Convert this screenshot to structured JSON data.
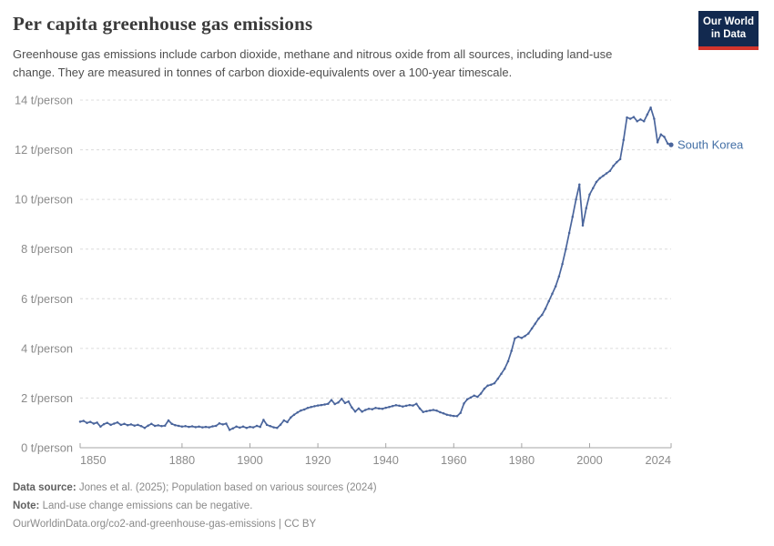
{
  "header": {
    "title": "Per capita greenhouse gas emissions",
    "subtitle": "Greenhouse gas emissions include carbon dioxide, methane and nitrous oxide from all sources, including land-use change. They are measured in tonnes of carbon dioxide-equivalents over a 100-year timescale.",
    "logo": {
      "line1": "Our World",
      "line2": "in Data"
    }
  },
  "chart_data": {
    "type": "line",
    "title": "Per capita greenhouse gas emissions",
    "entity": "South Korea",
    "unit": "t/person",
    "x": {
      "start": 1850,
      "end": 2024,
      "step": 1
    },
    "x_ticks": [
      1850,
      1880,
      1900,
      1920,
      1940,
      1960,
      1980,
      2000,
      2024
    ],
    "y_ticks": [
      0,
      2,
      4,
      6,
      8,
      10,
      12,
      14
    ],
    "y_tick_suffix": " t/person",
    "ylim": [
      0,
      14
    ],
    "grid": "dashed-horizontal",
    "legend_position": "end-of-line-label",
    "series": [
      {
        "name": "South Korea",
        "color": "#4a659c",
        "label_color": "#4470a6",
        "values": [
          1.05,
          1.08,
          1.0,
          1.04,
          0.97,
          1.01,
          0.85,
          0.95,
          1.0,
          0.92,
          0.97,
          1.02,
          0.92,
          0.96,
          0.91,
          0.94,
          0.89,
          0.92,
          0.87,
          0.8,
          0.89,
          0.96,
          0.88,
          0.9,
          0.87,
          0.89,
          1.1,
          0.96,
          0.91,
          0.88,
          0.85,
          0.87,
          0.84,
          0.86,
          0.83,
          0.85,
          0.82,
          0.84,
          0.82,
          0.86,
          0.88,
          0.98,
          0.94,
          0.97,
          0.72,
          0.78,
          0.85,
          0.81,
          0.85,
          0.8,
          0.84,
          0.82,
          0.88,
          0.84,
          1.12,
          0.92,
          0.87,
          0.82,
          0.8,
          0.93,
          1.1,
          1.03,
          1.22,
          1.33,
          1.42,
          1.5,
          1.54,
          1.6,
          1.64,
          1.67,
          1.7,
          1.72,
          1.74,
          1.77,
          1.92,
          1.76,
          1.82,
          1.97,
          1.8,
          1.86,
          1.62,
          1.46,
          1.58,
          1.45,
          1.52,
          1.57,
          1.55,
          1.6,
          1.58,
          1.57,
          1.61,
          1.64,
          1.68,
          1.71,
          1.69,
          1.66,
          1.69,
          1.72,
          1.7,
          1.77,
          1.58,
          1.44,
          1.47,
          1.5,
          1.52,
          1.49,
          1.43,
          1.38,
          1.33,
          1.3,
          1.28,
          1.27,
          1.4,
          1.78,
          1.95,
          2.02,
          2.1,
          2.05,
          2.18,
          2.38,
          2.5,
          2.54,
          2.6,
          2.78,
          2.98,
          3.18,
          3.48,
          3.9,
          4.4,
          4.47,
          4.42,
          4.5,
          4.6,
          4.8,
          5.0,
          5.2,
          5.35,
          5.6,
          5.9,
          6.2,
          6.5,
          6.9,
          7.4,
          8.0,
          8.65,
          9.3,
          10.0,
          10.6,
          8.95,
          9.65,
          10.2,
          10.45,
          10.7,
          10.85,
          10.95,
          11.05,
          11.15,
          11.35,
          11.5,
          11.62,
          12.4,
          13.3,
          13.25,
          13.32,
          13.15,
          13.22,
          13.15,
          13.42,
          13.7,
          13.25,
          12.3,
          12.62,
          12.52,
          12.25,
          12.2
        ]
      }
    ]
  },
  "footer": {
    "source_label": "Data source:",
    "source_text": "Jones et al. (2025); Population based on various sources (2024)",
    "note_label": "Note:",
    "note_text": "Land-use change emissions can be negative.",
    "url_text": "OurWorldinData.org/co2-and-greenhouse-gas-emissions | CC BY"
  },
  "colors": {
    "line": "#4a659c",
    "entity_label": "#4470a6",
    "gridline": "#dcdcdc",
    "axis_line": "#a5a5a5",
    "tick_text": "#8b8b8b",
    "logo_bg": "#12294f",
    "logo_red": "#d2342c"
  }
}
